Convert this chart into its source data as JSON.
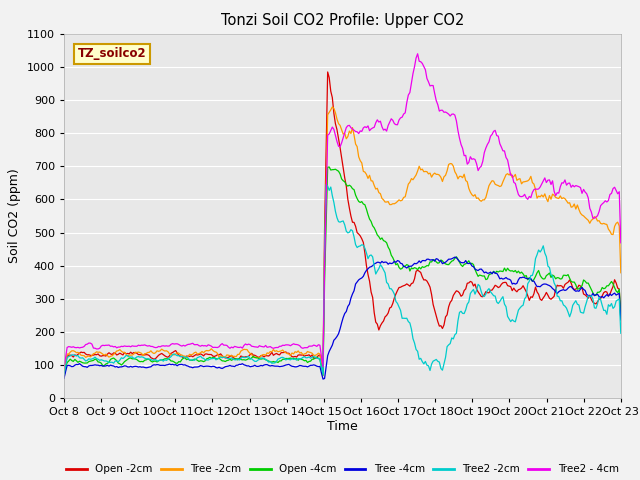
{
  "title": "Tonzi Soil CO2 Profile: Upper CO2",
  "ylabel": "Soil CO2 (ppm)",
  "xlabel": "Time",
  "dataset_label": "TZ_soilco2",
  "ylim": [
    0,
    1100
  ],
  "xtick_labels": [
    "Oct 8",
    "Oct 9",
    "Oct 10",
    "Oct 11",
    "Oct 12",
    "Oct 13",
    "Oct 14",
    "Oct 15",
    "Oct 16",
    "Oct 17",
    "Oct 18",
    "Oct 19",
    "Oct 20",
    "Oct 21",
    "Oct 22",
    "Oct 23"
  ],
  "series": [
    {
      "label": "Open -2cm",
      "color": "#dd0000"
    },
    {
      "label": "Tree -2cm",
      "color": "#ff9900"
    },
    {
      "label": "Open -4cm",
      "color": "#00cc00"
    },
    {
      "label": "Tree -4cm",
      "color": "#0000dd"
    },
    {
      "label": "Tree2 -2cm",
      "color": "#00cccc"
    },
    {
      "label": "Tree2 - 4cm",
      "color": "#ee00ee"
    }
  ],
  "fig_bg": "#f2f2f2",
  "plot_bg": "#e8e8e8",
  "grid_color": "#ffffff"
}
